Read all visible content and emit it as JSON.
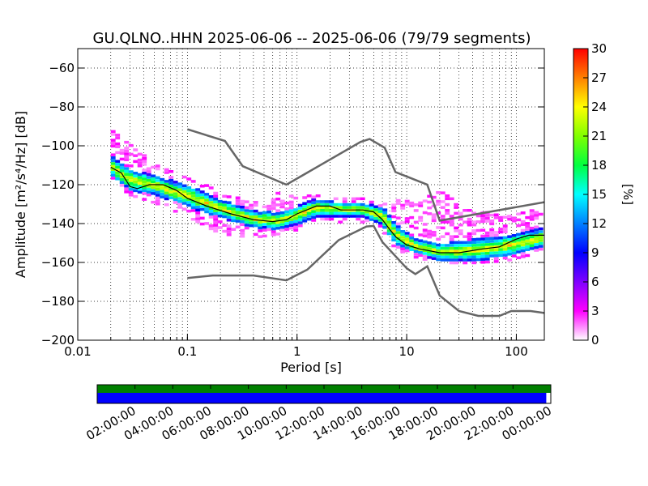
{
  "chart_data": {
    "type": "heatmap",
    "title": "GU.QLNO..HHN   2025-06-06 -- 2025-06-06  (79/79 segments)",
    "xlabel": "Period [s]",
    "ylabel": "Amplitude [m²/s⁴/Hz] [dB]",
    "xscale": "log",
    "xlim": [
      0.01,
      180
    ],
    "ylim": [
      -200,
      -50
    ],
    "grid": true,
    "x_ticks": [
      {
        "value": 0.01,
        "label": "0.01"
      },
      {
        "value": 0.1,
        "label": "0.1"
      },
      {
        "value": 1,
        "label": "1"
      },
      {
        "value": 10,
        "label": "10"
      },
      {
        "value": 100,
        "label": "100"
      }
    ],
    "y_ticks": [
      {
        "value": -60,
        "label": "−60"
      },
      {
        "value": -80,
        "label": "−80"
      },
      {
        "value": -100,
        "label": "−100"
      },
      {
        "value": -120,
        "label": "−120"
      },
      {
        "value": -140,
        "label": "−140"
      },
      {
        "value": -160,
        "label": "−160"
      },
      {
        "value": -180,
        "label": "−180"
      },
      {
        "value": -200,
        "label": "−200"
      }
    ],
    "colorbar": {
      "label": "[%]",
      "min": 0,
      "max": 30,
      "ticks": [
        "0",
        "3",
        "6",
        "9",
        "12",
        "15",
        "18",
        "21",
        "24",
        "27",
        "30"
      ],
      "colors": [
        "#ffffff",
        "#ff00ff",
        "#7f00ff",
        "#0000ff",
        "#0080ff",
        "#00ffff",
        "#00ff40",
        "#80ff00",
        "#ffff00",
        "#ff8000",
        "#ff0000"
      ]
    },
    "series": [
      {
        "role": "noise-model-high",
        "color": "#666666",
        "points": [
          [
            0.1,
            -91.5
          ],
          [
            0.22,
            -97.5
          ],
          [
            0.32,
            -110.5
          ],
          [
            0.8,
            -120
          ],
          [
            3.8,
            -98
          ],
          [
            4.6,
            -96.5
          ],
          [
            6.3,
            -101
          ],
          [
            7.9,
            -113.5
          ],
          [
            15.4,
            -120
          ],
          [
            20,
            -138.5
          ],
          [
            180,
            -129
          ]
        ]
      },
      {
        "role": "noise-model-low",
        "color": "#666666",
        "points": [
          [
            0.1,
            -168
          ],
          [
            0.17,
            -166.7
          ],
          [
            0.4,
            -166.7
          ],
          [
            0.8,
            -169.2
          ],
          [
            1.24,
            -163.7
          ],
          [
            2.4,
            -148.5
          ],
          [
            4.3,
            -141.5
          ],
          [
            5.0,
            -141.2
          ],
          [
            6.0,
            -149.5
          ],
          [
            10,
            -163
          ],
          [
            12,
            -166
          ],
          [
            15.4,
            -162
          ],
          [
            20,
            -177
          ],
          [
            30,
            -185
          ],
          [
            45,
            -187.5
          ],
          [
            70,
            -187.5
          ],
          [
            90,
            -185
          ],
          [
            135,
            -185
          ],
          [
            180,
            -186
          ]
        ]
      },
      {
        "role": "mode",
        "color": "#000000",
        "points": [
          [
            0.02,
            -111
          ],
          [
            0.025,
            -114
          ],
          [
            0.03,
            -121
          ],
          [
            0.035,
            -122
          ],
          [
            0.045,
            -120
          ],
          [
            0.06,
            -120
          ],
          [
            0.08,
            -123
          ],
          [
            0.1,
            -127
          ],
          [
            0.15,
            -131
          ],
          [
            0.25,
            -135
          ],
          [
            0.4,
            -138
          ],
          [
            0.6,
            -139
          ],
          [
            0.8,
            -138
          ],
          [
            1.0,
            -135
          ],
          [
            1.5,
            -131
          ],
          [
            2.0,
            -131
          ],
          [
            2.5,
            -133
          ],
          [
            3.0,
            -133
          ],
          [
            4.0,
            -133
          ],
          [
            5.0,
            -134
          ],
          [
            6.0,
            -138
          ],
          [
            7.0,
            -143
          ],
          [
            8.0,
            -147
          ],
          [
            10,
            -151
          ],
          [
            13,
            -153
          ],
          [
            20,
            -155
          ],
          [
            30,
            -155
          ],
          [
            50,
            -153
          ],
          [
            70,
            -152
          ],
          [
            100,
            -148
          ],
          [
            130,
            -146
          ],
          [
            180,
            -146
          ]
        ]
      }
    ],
    "density": [
      {
        "x": 0.02,
        "ylo": -116,
        "yhi": -106,
        "lo": -118,
        "hi": -92
      },
      {
        "x": 0.03,
        "ylo": -124,
        "yhi": -113,
        "lo": -126,
        "hi": -100
      },
      {
        "x": 0.05,
        "ylo": -126,
        "yhi": -116,
        "lo": -130,
        "hi": -110
      },
      {
        "x": 0.1,
        "ylo": -132,
        "yhi": -121,
        "lo": -137,
        "hi": -117
      },
      {
        "x": 0.2,
        "ylo": -138,
        "yhi": -128,
        "lo": -146,
        "hi": -124
      },
      {
        "x": 0.4,
        "ylo": -143,
        "yhi": -134,
        "lo": -148,
        "hi": -129
      },
      {
        "x": 0.7,
        "ylo": -144,
        "yhi": -135,
        "lo": -146,
        "hi": -124
      },
      {
        "x": 1.0,
        "ylo": -141,
        "yhi": -132,
        "lo": -144,
        "hi": -126
      },
      {
        "x": 1.5,
        "ylo": -137,
        "yhi": -128,
        "lo": -140,
        "hi": -126
      },
      {
        "x": 2.5,
        "ylo": -137,
        "yhi": -130,
        "lo": -140,
        "hi": -128
      },
      {
        "x": 4.0,
        "ylo": -137,
        "yhi": -130,
        "lo": -140,
        "hi": -128
      },
      {
        "x": 6.0,
        "ylo": -142,
        "yhi": -132,
        "lo": -144,
        "hi": -130
      },
      {
        "x": 8.0,
        "ylo": -152,
        "yhi": -141,
        "lo": -154,
        "hi": -128
      },
      {
        "x": 12,
        "ylo": -156,
        "yhi": -149,
        "lo": -158,
        "hi": -130
      },
      {
        "x": 20,
        "ylo": -160,
        "yhi": -151,
        "lo": -161,
        "hi": -124
      },
      {
        "x": 40,
        "ylo": -160,
        "yhi": -149,
        "lo": -161,
        "hi": -135
      },
      {
        "x": 80,
        "ylo": -158,
        "yhi": -147,
        "lo": -160,
        "hi": -134
      },
      {
        "x": 180,
        "ylo": -153,
        "yhi": -143,
        "lo": -155,
        "hi": -134
      }
    ]
  },
  "timeline": {
    "tick_labels": [
      "02:00:00",
      "04:00:00",
      "06:00:00",
      "08:00:00",
      "10:00:00",
      "12:00:00",
      "14:00:00",
      "16:00:00",
      "18:00:00",
      "20:00:00",
      "22:00:00",
      "00:00:00"
    ],
    "data_bar_color": "#008000",
    "segment_bar_color": "#0000ff",
    "coverage_fraction": 0.99
  }
}
